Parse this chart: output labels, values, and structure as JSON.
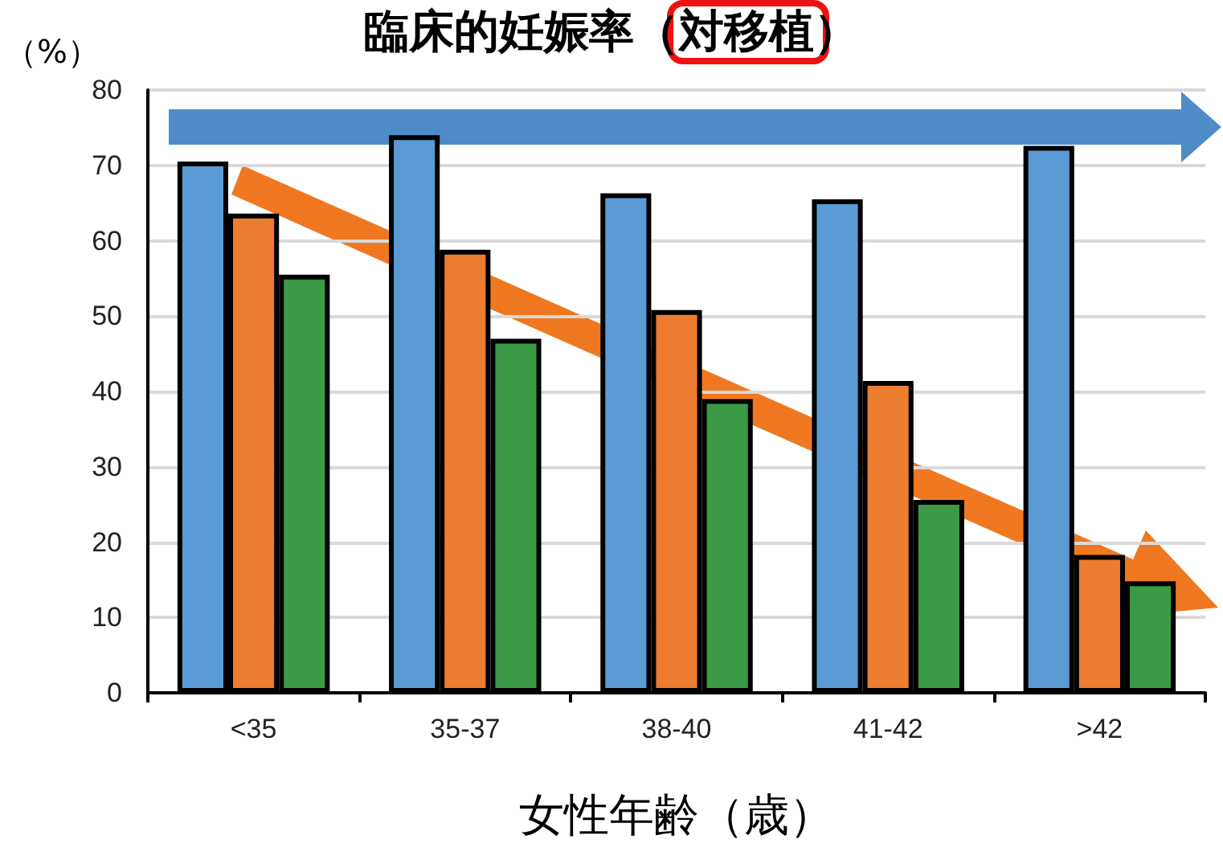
{
  "chart_data": {
    "type": "bar",
    "title": "臨床的妊娠率（対移植）",
    "xlabel": "女性年齢（歳）",
    "ylabel": "（%）",
    "categories": [
      "<35",
      "35-37",
      "38-40",
      "41-42",
      ">42"
    ],
    "series": [
      {
        "color": "#5b9bd5",
        "values": [
          70.5,
          74,
          66.3,
          65.5,
          72.6
        ]
      },
      {
        "color": "#ed7d31",
        "values": [
          63.6,
          58.8,
          50.8,
          41.4,
          18.3
        ]
      },
      {
        "color": "#3a9a45",
        "values": [
          55.5,
          47,
          39,
          25.6,
          14.8
        ]
      }
    ],
    "ylim": [
      0,
      80
    ],
    "yticks": [
      0,
      10,
      20,
      30,
      40,
      50,
      60,
      70,
      80
    ],
    "grid": "y"
  }
}
